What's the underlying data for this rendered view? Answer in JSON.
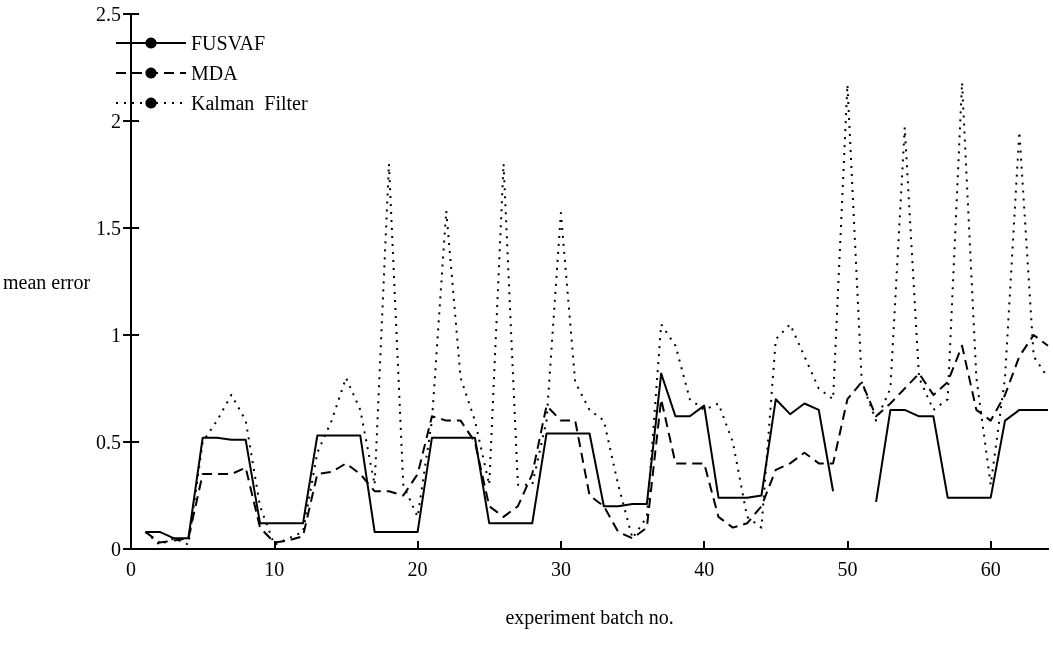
{
  "chart_data": {
    "type": "line",
    "xlabel": "experiment batch no.",
    "ylabel": "mean error",
    "x": [
      1,
      2,
      3,
      4,
      5,
      6,
      7,
      8,
      9,
      10,
      11,
      12,
      13,
      14,
      15,
      16,
      17,
      18,
      19,
      20,
      21,
      22,
      23,
      24,
      25,
      26,
      27,
      28,
      29,
      30,
      31,
      32,
      33,
      34,
      35,
      36,
      37,
      38,
      39,
      40,
      41,
      42,
      43,
      44,
      45,
      46,
      47,
      48,
      49,
      50,
      51,
      52,
      53,
      54,
      55,
      56,
      57,
      58,
      59,
      60,
      61,
      62,
      63,
      64
    ],
    "series": [
      {
        "name": "FUSVAF",
        "color": "#000000",
        "line_style": "solid",
        "values": [
          0.08,
          0.08,
          0.05,
          0.05,
          0.52,
          0.52,
          0.51,
          0.51,
          0.12,
          0.12,
          0.12,
          0.12,
          0.53,
          0.53,
          0.53,
          0.53,
          0.08,
          0.08,
          0.08,
          0.08,
          0.52,
          0.52,
          0.52,
          0.52,
          0.12,
          0.12,
          0.12,
          0.12,
          0.54,
          0.54,
          0.54,
          0.54,
          0.2,
          0.2,
          0.21,
          0.21,
          0.82,
          0.62,
          0.62,
          0.67,
          0.24,
          0.24,
          0.24,
          0.25,
          0.7,
          0.63,
          0.68,
          0.65,
          0.27,
          null,
          null,
          0.22,
          0.65,
          0.65,
          0.62,
          0.62,
          0.24,
          0.24,
          0.24,
          0.24,
          0.6,
          0.65,
          0.65,
          0.65
        ]
      },
      {
        "name": "MDA",
        "color": "#000000",
        "line_style": "dashed",
        "values": [
          0.08,
          0.03,
          0.04,
          0.05,
          0.35,
          0.35,
          0.35,
          0.38,
          0.1,
          0.03,
          0.04,
          0.06,
          0.35,
          0.36,
          0.4,
          0.35,
          0.27,
          0.27,
          0.25,
          0.35,
          0.62,
          0.6,
          0.6,
          0.5,
          0.2,
          0.15,
          0.2,
          0.35,
          0.67,
          0.6,
          0.6,
          0.25,
          0.2,
          0.08,
          0.05,
          0.1,
          0.7,
          0.4,
          0.4,
          0.4,
          0.15,
          0.1,
          0.12,
          0.2,
          0.37,
          0.4,
          0.45,
          0.4,
          0.4,
          0.7,
          0.78,
          0.62,
          0.68,
          0.75,
          0.82,
          0.72,
          0.78,
          0.95,
          0.65,
          0.6,
          0.72,
          0.9,
          1.0,
          0.95
        ]
      },
      {
        "name": "Kalman  Filter",
        "color": "#000000",
        "line_style": "dotted",
        "values": [
          0.08,
          0.02,
          0.05,
          0.02,
          0.5,
          0.6,
          0.72,
          0.6,
          0.2,
          0.02,
          0.05,
          0.08,
          0.45,
          0.6,
          0.8,
          0.65,
          0.3,
          1.8,
          0.3,
          0.15,
          0.6,
          1.58,
          0.8,
          0.6,
          0.3,
          1.8,
          0.3,
          0.3,
          0.6,
          1.57,
          0.78,
          0.65,
          0.6,
          0.3,
          0.05,
          0.15,
          1.05,
          0.95,
          0.7,
          0.65,
          0.68,
          0.5,
          0.15,
          0.1,
          0.98,
          1.05,
          0.9,
          0.75,
          0.7,
          2.17,
          0.78,
          0.6,
          0.75,
          1.97,
          0.8,
          0.65,
          0.7,
          2.18,
          0.8,
          0.3,
          0.8,
          1.95,
          0.9,
          0.8
        ]
      }
    ],
    "xlim": [
      0,
      64
    ],
    "xticks": [
      0,
      10,
      20,
      30,
      40,
      50,
      60
    ],
    "ylim": [
      0,
      2.5
    ],
    "yticks": [
      0,
      0.5,
      1,
      1.5,
      2,
      2.5
    ],
    "grid": false,
    "legend": "top left",
    "marker": "none"
  }
}
